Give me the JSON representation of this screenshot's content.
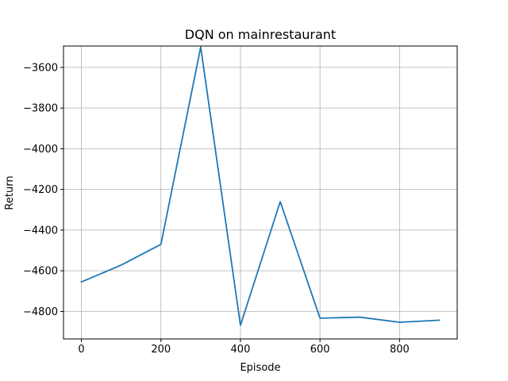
{
  "chart_data": {
    "type": "line",
    "title": "DQN on mainrestaurant",
    "xlabel": "Episode",
    "ylabel": "Return",
    "xlim": [
      -45,
      945
    ],
    "ylim": [
      -4935,
      -3495
    ],
    "x_ticks": [
      0,
      200,
      400,
      600,
      800
    ],
    "y_ticks": [
      -4800,
      -4600,
      -4400,
      -4200,
      -4000,
      -3800,
      -3600
    ],
    "grid": true,
    "line_color": "#1f77b4",
    "series": [
      {
        "x": [
          0,
          100,
          200,
          300,
          400,
          500,
          600,
          700,
          800,
          900
        ],
        "values": [
          -4655,
          -4572,
          -4470,
          -3500,
          -4868,
          -4260,
          -4833,
          -4828,
          -4853,
          -4843
        ]
      }
    ]
  }
}
